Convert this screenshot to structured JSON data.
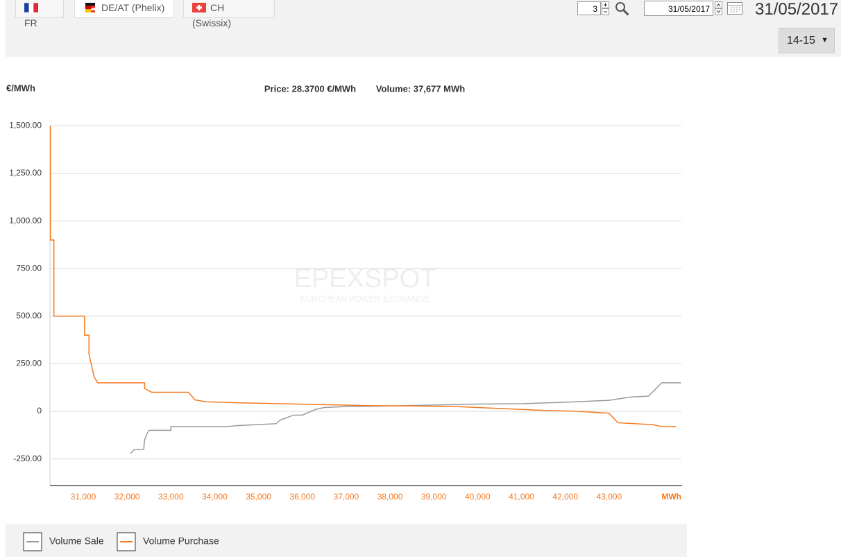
{
  "toolbar": {
    "tabs": [
      "FR",
      "DE/AT (Phelix)",
      "CH (Swissix)"
    ],
    "spinner_value": 3,
    "date_input": "31/05/2017",
    "date_heading": "31/05/2017",
    "hour_select": "14-15"
  },
  "chart_data": {
    "type": "line",
    "step": true,
    "title": "Price: 28.3700 €/MWh",
    "subtitle": "Volume: 37,677 MWh",
    "ylabel": "€/MWh",
    "xlabel": "MWh",
    "watermark": [
      "EPEXSPOT",
      "EUROPEAN POWER EXCHANGE"
    ],
    "xlim": [
      30240,
      44650
    ],
    "xticks": [
      {
        "value": 31000,
        "label": "31,000"
      },
      {
        "value": 32000,
        "label": "32,000"
      },
      {
        "value": 33000,
        "label": "33,000"
      },
      {
        "value": 34000,
        "label": "34,000"
      },
      {
        "value": 35000,
        "label": "35,000"
      },
      {
        "value": 36000,
        "label": "36,000"
      },
      {
        "value": 37000,
        "label": "37,000"
      },
      {
        "value": 38000,
        "label": "38,000"
      },
      {
        "value": 39000,
        "label": "39,000"
      },
      {
        "value": 40000,
        "label": "40,000"
      },
      {
        "value": 41000,
        "label": "41,000"
      },
      {
        "value": 42000,
        "label": "42,000"
      },
      {
        "value": 43000,
        "label": "43,000"
      }
    ],
    "ylim": [
      -390,
      1500
    ],
    "yticks": [
      {
        "value": -250,
        "label": "-250.00"
      },
      0,
      {
        "value": 250,
        "label": "250.00"
      },
      {
        "value": 500,
        "label": "500.00"
      },
      {
        "value": 750,
        "label": "750.00"
      },
      {
        "value": 1000,
        "label": "1,000.00"
      },
      {
        "value": 1250,
        "label": "1,250.00"
      },
      {
        "value": 1500,
        "label": "1,500.00"
      }
    ],
    "grid": true,
    "series": [
      {
        "name": "Volume Sale",
        "color": "#999999",
        "x": [
          32080,
          32170,
          32380,
          32400,
          32450,
          32500,
          33000,
          33000,
          34300,
          34500,
          35400,
          35500,
          35800,
          36000,
          36300,
          36500,
          37000,
          38000,
          39000,
          40000,
          41000,
          42000,
          43000,
          43500,
          43900,
          44200,
          44640
        ],
        "values": [
          -220,
          -200,
          -200,
          -150,
          -120,
          -100,
          -100,
          -80,
          -80,
          -75,
          -65,
          -45,
          -20,
          -20,
          10,
          20,
          25,
          28,
          33,
          38,
          40,
          48,
          58,
          75,
          80,
          150,
          150
        ]
      },
      {
        "name": "Volume Purchase",
        "color": "#f47920",
        "x": [
          30250,
          30250,
          30330,
          30330,
          31030,
          31030,
          31130,
          31130,
          31180,
          31250,
          31330,
          32400,
          32400,
          32560,
          33400,
          33550,
          33800,
          34500,
          35500,
          36500,
          37500,
          38500,
          39500,
          40500,
          41500,
          42300,
          43000,
          43200,
          44000,
          44200,
          44530
        ],
        "values": [
          1500,
          900,
          900,
          500,
          500,
          400,
          400,
          300,
          250,
          180,
          150,
          150,
          120,
          100,
          100,
          60,
          50,
          45,
          40,
          35,
          30,
          28,
          25,
          15,
          5,
          0,
          -10,
          -60,
          -70,
          -80,
          -80
        ]
      }
    ]
  }
}
